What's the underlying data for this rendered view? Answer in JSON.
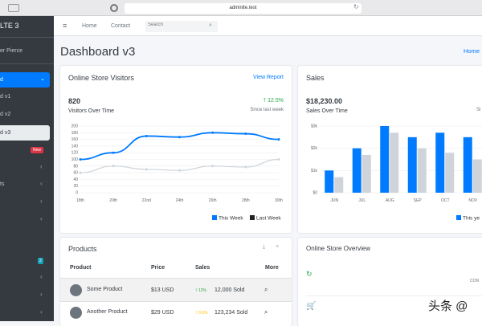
{
  "browser": {
    "url": "adminlte.test"
  },
  "sidebar": {
    "brand": "LTE 3",
    "user": "er Pierce",
    "items": [
      {
        "label": "d"
      },
      {
        "label": "d v1"
      },
      {
        "label": "d v2"
      },
      {
        "label": "d v3"
      },
      {
        "label": "",
        "badge": "New"
      },
      {
        "label": ""
      },
      {
        "label": "ts"
      },
      {
        "label": ""
      },
      {
        "label": ""
      },
      {
        "label": "",
        "badge": "2"
      },
      {
        "label": ""
      },
      {
        "label": ""
      },
      {
        "label": ""
      }
    ]
  },
  "navbar": {
    "home": "Home",
    "contact": "Contact",
    "search_placeholder": "Search"
  },
  "page": {
    "title": "Dashboard v3",
    "breadcrumb": "Home"
  },
  "visitors": {
    "title": "Online Store Visitors",
    "link": "View Report",
    "value": "820",
    "subtitle": "Visitors Over Time",
    "change": "12.5%",
    "since": "Since last week",
    "legend": [
      "This Week",
      "Last Week"
    ]
  },
  "sales": {
    "title": "Sales",
    "value": "$18,230.00",
    "subtitle": "Sales Over Time",
    "since": "Si",
    "legend": "This ye"
  },
  "products": {
    "title": "Products",
    "headers": [
      "Product",
      "Price",
      "Sales",
      "More"
    ],
    "rows": [
      {
        "name": "Some Product",
        "price": "$13 USD",
        "pct": "12%",
        "sold": "12,000 Sold"
      },
      {
        "name": "Another Product",
        "price": "$29 USD",
        "pct": "0.5%",
        "sold": "123,234 Sold"
      }
    ]
  },
  "overview": {
    "title": "Online Store Overview",
    "conv": "CON"
  },
  "watermark": "头条 @",
  "colors": {
    "primary": "#007bff",
    "gray": "#ced4da",
    "sidebar": "#343a40",
    "success": "#28a745",
    "warning": "#ffc107",
    "danger": "#dc3545",
    "info": "#17a2b8"
  },
  "chart_data": [
    {
      "type": "line",
      "categories": [
        "18th",
        "20th",
        "22nd",
        "24th",
        "26th",
        "28th",
        "30th"
      ],
      "ylim": [
        0,
        200
      ],
      "yticks": [
        0,
        20,
        40,
        60,
        80,
        100,
        120,
        140,
        160,
        180,
        200
      ],
      "grid": true,
      "legend": "bottom-right",
      "series": [
        {
          "name": "This Week",
          "values": [
            100,
            120,
            170,
            167,
            180,
            177,
            160
          ],
          "color": "#007bff"
        },
        {
          "name": "Last Week",
          "values": [
            60,
            80,
            70,
            67,
            80,
            77,
            100
          ],
          "color": "#ced4da"
        }
      ]
    },
    {
      "type": "bar",
      "categories": [
        "JUN",
        "JUL",
        "AUG",
        "SEP",
        "OCT",
        "NOV"
      ],
      "ylim": [
        0,
        3000
      ],
      "yticks": [
        "$0",
        "$1k",
        "$2k",
        "$3k"
      ],
      "grid": true,
      "legend": "bottom-right",
      "series": [
        {
          "name": "This ye",
          "values": [
            1000,
            2000,
            3000,
            2500,
            2700,
            2500
          ],
          "color": "#007bff"
        },
        {
          "values": [
            700,
            1700,
            2700,
            2000,
            1800,
            1500
          ],
          "color": "#ced4da"
        }
      ]
    }
  ]
}
